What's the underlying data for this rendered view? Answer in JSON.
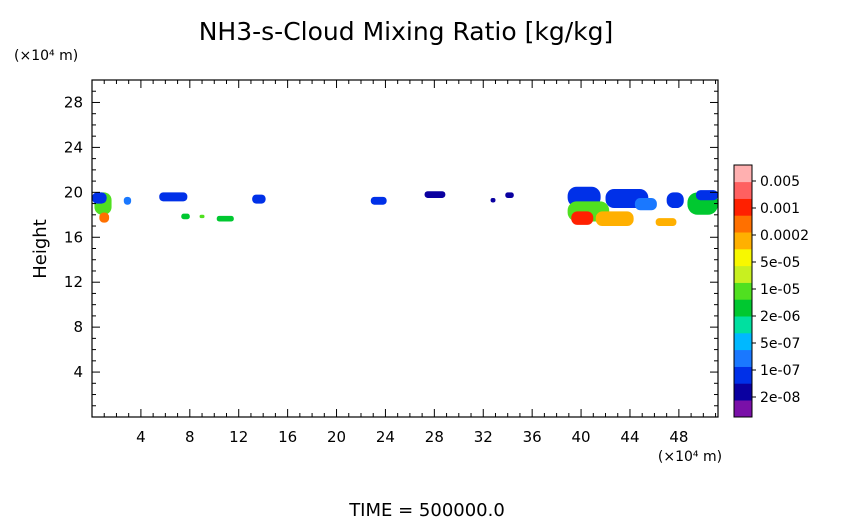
{
  "chart_data": {
    "type": "heatmap",
    "title": "NH3-s-Cloud Mixing Ratio [kg/kg]",
    "ylabel": "Height",
    "x_unit": "(×10⁴ m)",
    "y_unit": "(×10⁴ m)",
    "x_ticks": [
      "4",
      "8",
      "12",
      "16",
      "20",
      "24",
      "28",
      "32",
      "36",
      "40",
      "44",
      "48"
    ],
    "y_ticks": [
      "4",
      "8",
      "12",
      "16",
      "20",
      "24",
      "28"
    ],
    "xlim": [
      0,
      51.2
    ],
    "ylim": [
      0,
      30
    ],
    "footer": "TIME = 500000.0",
    "colorbar": {
      "labels": [
        "0.005",
        "0.001",
        "0.0002",
        "5e-05",
        "1e-05",
        "2e-06",
        "5e-07",
        "1e-07",
        "2e-08"
      ],
      "colors": [
        "#7a10a8",
        "#0a00a0",
        "#0030e8",
        "#1a78ff",
        "#00b8ff",
        "#00e0a0",
        "#00c830",
        "#50e020",
        "#c8f020",
        "#f8f800",
        "#ffb000",
        "#ff7000",
        "#ff2000",
        "#ff6060",
        "#ffb0b0"
      ]
    },
    "clouds": [
      {
        "x": 0.2,
        "x2": 1.6,
        "y": 18.0,
        "y2": 20.0,
        "level": 7
      },
      {
        "x": 0.0,
        "x2": 1.2,
        "y": 19.0,
        "y2": 20.0,
        "level": 2
      },
      {
        "x": 0.6,
        "x2": 1.4,
        "y": 17.3,
        "y2": 18.2,
        "level": 11
      },
      {
        "x": 2.6,
        "x2": 3.2,
        "y": 18.9,
        "y2": 19.6,
        "level": 3
      },
      {
        "x": 5.5,
        "x2": 7.8,
        "y": 19.2,
        "y2": 20.0,
        "level": 2
      },
      {
        "x": 7.3,
        "x2": 8.0,
        "y": 17.6,
        "y2": 18.1,
        "level": 6
      },
      {
        "x": 8.8,
        "x2": 9.2,
        "y": 17.7,
        "y2": 18.0,
        "level": 7
      },
      {
        "x": 10.2,
        "x2": 11.6,
        "y": 17.4,
        "y2": 17.9,
        "level": 6
      },
      {
        "x": 13.1,
        "x2": 14.2,
        "y": 19.0,
        "y2": 19.8,
        "level": 2
      },
      {
        "x": 22.8,
        "x2": 24.1,
        "y": 18.9,
        "y2": 19.6,
        "level": 2
      },
      {
        "x": 27.2,
        "x2": 28.9,
        "y": 19.5,
        "y2": 20.1,
        "level": 1
      },
      {
        "x": 32.6,
        "x2": 33.0,
        "y": 19.1,
        "y2": 19.5,
        "level": 1
      },
      {
        "x": 33.8,
        "x2": 34.5,
        "y": 19.5,
        "y2": 20.0,
        "level": 1
      },
      {
        "x": 38.9,
        "x2": 41.6,
        "y": 18.7,
        "y2": 20.5,
        "level": 2
      },
      {
        "x": 38.9,
        "x2": 42.3,
        "y": 17.4,
        "y2": 19.2,
        "level": 7
      },
      {
        "x": 39.2,
        "x2": 41.0,
        "y": 17.1,
        "y2": 18.3,
        "level": 12
      },
      {
        "x": 41.2,
        "x2": 44.3,
        "y": 17.0,
        "y2": 18.3,
        "level": 10
      },
      {
        "x": 42.0,
        "x2": 45.5,
        "y": 18.6,
        "y2": 20.3,
        "level": 2
      },
      {
        "x": 44.4,
        "x2": 46.2,
        "y": 18.4,
        "y2": 19.5,
        "level": 3
      },
      {
        "x": 46.1,
        "x2": 47.8,
        "y": 17.0,
        "y2": 17.7,
        "level": 10
      },
      {
        "x": 47.0,
        "x2": 48.4,
        "y": 18.6,
        "y2": 20.0,
        "level": 2
      },
      {
        "x": 48.7,
        "x2": 51.2,
        "y": 18.0,
        "y2": 20.0,
        "level": 6
      },
      {
        "x": 49.4,
        "x2": 51.2,
        "y": 19.3,
        "y2": 20.2,
        "level": 2
      }
    ]
  }
}
